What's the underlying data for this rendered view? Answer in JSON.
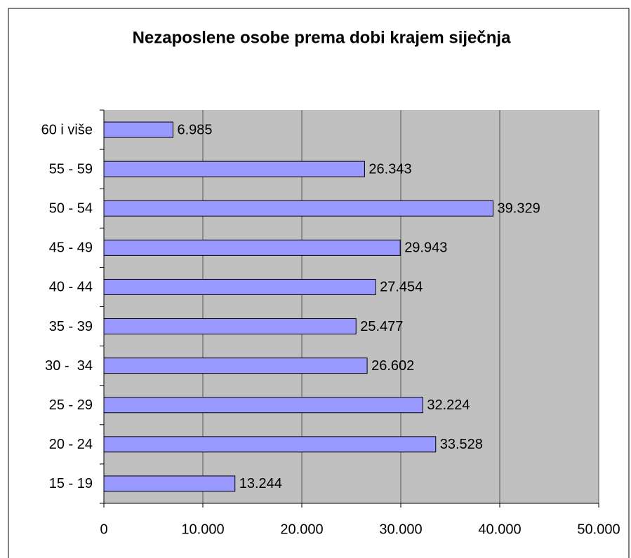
{
  "chart_data": {
    "type": "bar",
    "orientation": "horizontal",
    "title": "Nezaposlene osobe prema dobi krajem siječnja",
    "categories": [
      "15 - 19",
      "20 - 24",
      "25 - 29",
      "30 -  34",
      "35 - 39",
      "40 - 44",
      "45 - 49",
      "50 - 54",
      "55 - 59",
      "60 i više"
    ],
    "values": [
      13244,
      33528,
      32224,
      26602,
      25477,
      27454,
      29943,
      39329,
      26343,
      6985
    ],
    "value_labels": [
      "13.244",
      "33.528",
      "32.224",
      "26.602",
      "25.477",
      "27.454",
      "29.943",
      "39.329",
      "26.343",
      "6.985"
    ],
    "color": "#9999ff",
    "xlim": [
      0,
      50000
    ],
    "xticks": [
      0,
      {
        "value": 10000,
        "label": "10.000"
      },
      {
        "value": 20000,
        "label": "20.000"
      },
      {
        "value": 30000,
        "label": "30.000"
      },
      {
        "value": 40000,
        "label": "40.000"
      },
      {
        "value": 50000,
        "label": "50.000"
      }
    ],
    "grid": true
  }
}
